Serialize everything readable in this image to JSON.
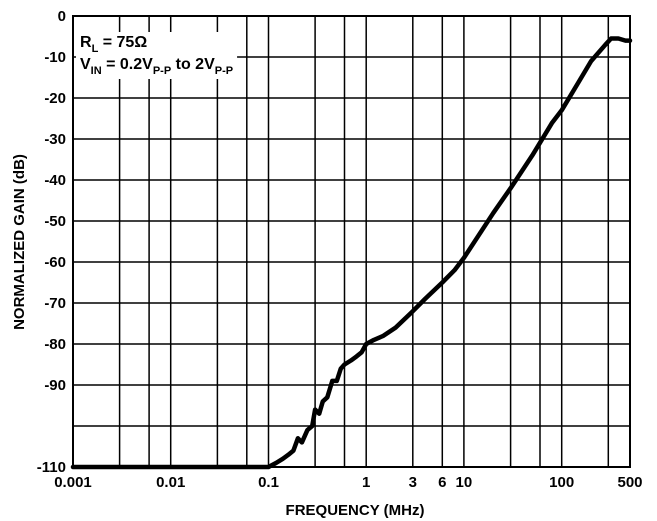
{
  "chart_data": {
    "type": "line",
    "xlabel": "FREQUENCY (MHz)",
    "ylabel": "NORMALIZED GAIN (dB)",
    "x_scale": "log",
    "xlim": [
      0.001,
      500
    ],
    "ylim": [
      -110,
      0
    ],
    "grid": true,
    "x_ticks": [
      {
        "value": 0.001,
        "label": "0.001"
      },
      {
        "value": 0.01,
        "label": "0.01"
      },
      {
        "value": 0.1,
        "label": "0.1"
      },
      {
        "value": 1,
        "label": "1"
      },
      {
        "value": 3,
        "label": "3"
      },
      {
        "value": 6,
        "label": "6"
      },
      {
        "value": 10,
        "label": "10"
      },
      {
        "value": 100,
        "label": "100"
      },
      {
        "value": 500,
        "label": "500"
      }
    ],
    "y_ticks": [
      {
        "value": 0,
        "label": "0"
      },
      {
        "value": -10,
        "label": "-10"
      },
      {
        "value": -20,
        "label": "-20"
      },
      {
        "value": -30,
        "label": "-30"
      },
      {
        "value": -40,
        "label": "-40"
      },
      {
        "value": -50,
        "label": "-50"
      },
      {
        "value": -60,
        "label": "-60"
      },
      {
        "value": -70,
        "label": "-70"
      },
      {
        "value": -80,
        "label": "-80"
      },
      {
        "value": -90,
        "label": "-90"
      },
      {
        "value": -110,
        "label": "-110"
      }
    ],
    "annotation": {
      "line1": {
        "main": "R",
        "sub": "L",
        "rest": " = 75Ω"
      },
      "line2": {
        "main": "V",
        "sub": "IN",
        "mid": " = 0.2V",
        "sub2": "P-P",
        "mid2": " to 2V",
        "sub3": "P-P"
      }
    },
    "series": [
      {
        "x": [
          0.001,
          0.01,
          0.05,
          0.1,
          0.12,
          0.14,
          0.16,
          0.18,
          0.2,
          0.22,
          0.25,
          0.28,
          0.3,
          0.33,
          0.36,
          0.4,
          0.45,
          0.5,
          0.55,
          0.6,
          0.7,
          0.8,
          0.9,
          1,
          1.2,
          1.5,
          2,
          3,
          4,
          6,
          8,
          10,
          20,
          30,
          50,
          80,
          100,
          150,
          200,
          280,
          320,
          380,
          450,
          500
        ],
        "y": [
          -110,
          -110,
          -110,
          -110,
          -109,
          -108,
          -107,
          -106,
          -103,
          -104,
          -101,
          -100,
          -96,
          -97,
          -94,
          -93,
          -89,
          -89,
          -86,
          -85,
          -84,
          -83,
          -82,
          -80,
          -79,
          -78,
          -76,
          -72,
          -69,
          -65,
          -62,
          -59,
          -48,
          -42,
          -34,
          -26,
          -23,
          -16,
          -11,
          -7,
          -5.5,
          -5.5,
          -6,
          -6
        ]
      }
    ]
  }
}
